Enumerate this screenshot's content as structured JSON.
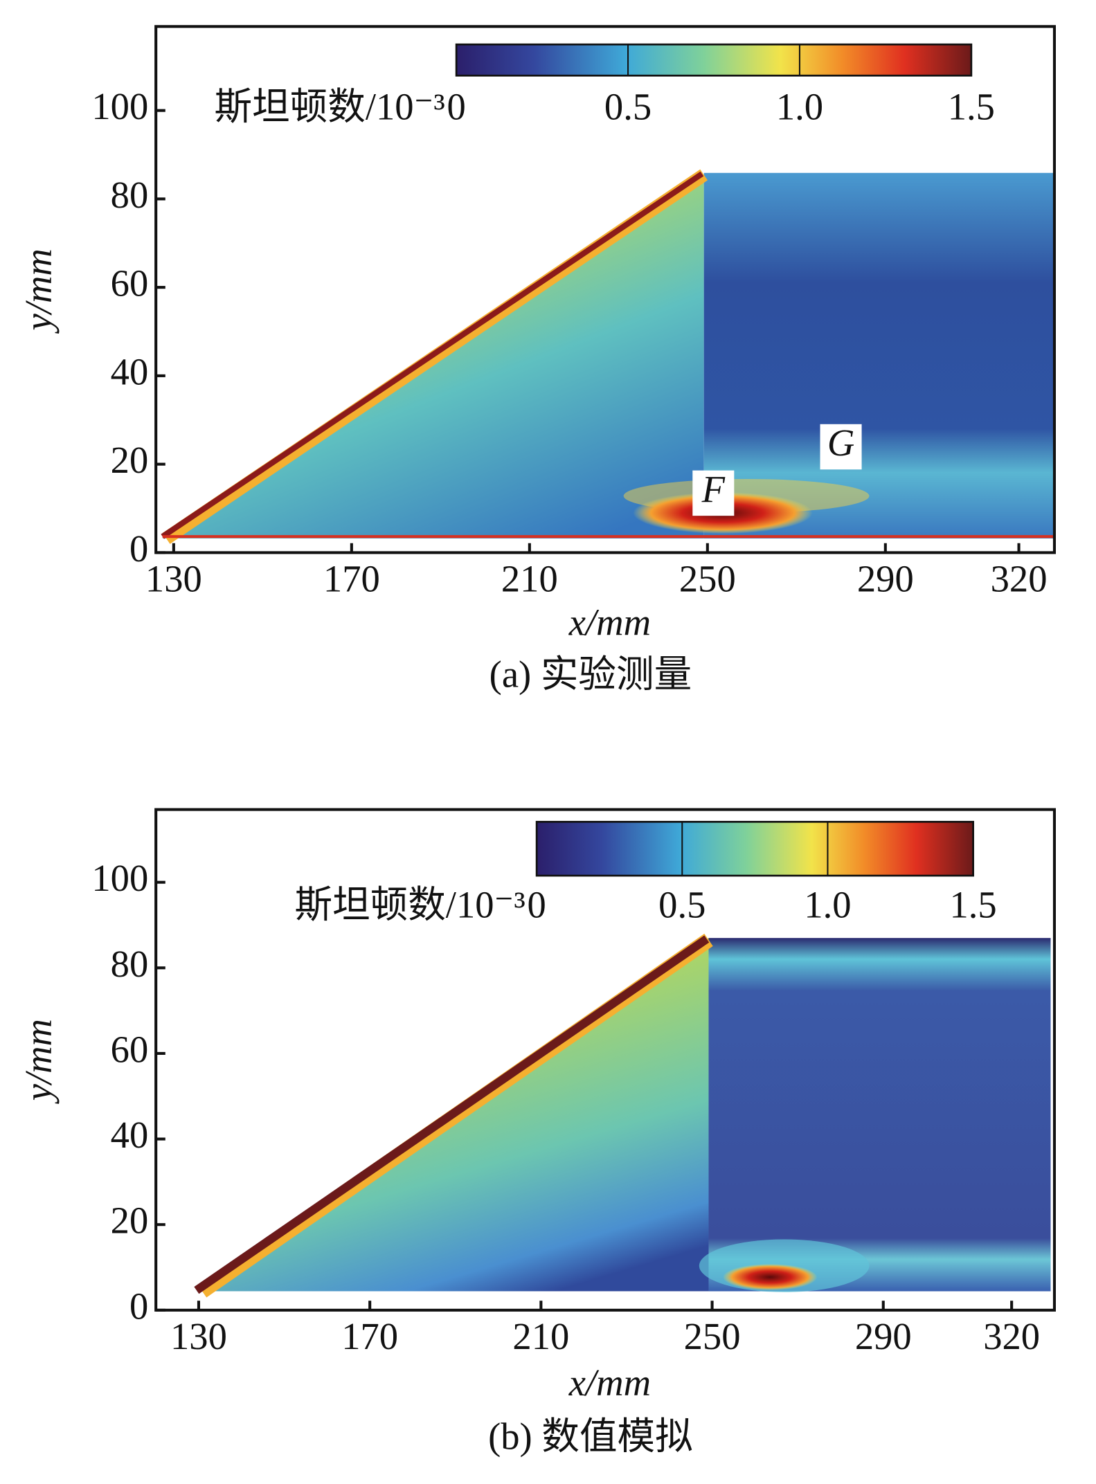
{
  "chart_data": [
    {
      "type": "heatmap",
      "title": "(a) 实验测量",
      "xlabel": "x/mm",
      "ylabel": "y/mm",
      "xlim": [
        126,
        328
      ],
      "xticks": [
        130,
        170,
        210,
        250,
        290,
        320
      ],
      "ylim": [
        0,
        119
      ],
      "yticks": [
        0,
        20,
        40,
        60,
        80,
        100
      ],
      "colorbar": {
        "label": "斯坦顿数/10⁻³",
        "lim": [
          0,
          1.5
        ],
        "ticks": [
          0,
          0.5,
          {
            "value": 1,
            "label": "1.0"
          },
          1.5
        ]
      },
      "annotations": [
        "F",
        "G"
      ]
    },
    {
      "type": "heatmap",
      "title": "(b) 数值模拟",
      "xlabel": "x/mm",
      "ylabel": "y/mm",
      "xlim": [
        120,
        330
      ],
      "xticks": [
        130,
        170,
        210,
        250,
        290,
        320
      ],
      "ylim": [
        0,
        117
      ],
      "yticks": [
        0,
        20,
        40,
        60,
        80,
        100
      ],
      "colorbar": {
        "label": "斯坦顿数/10⁻³",
        "lim": [
          0,
          1.5
        ],
        "ticks": [
          0,
          0.5,
          {
            "value": 1,
            "label": "1.0"
          },
          1.5
        ]
      }
    }
  ]
}
